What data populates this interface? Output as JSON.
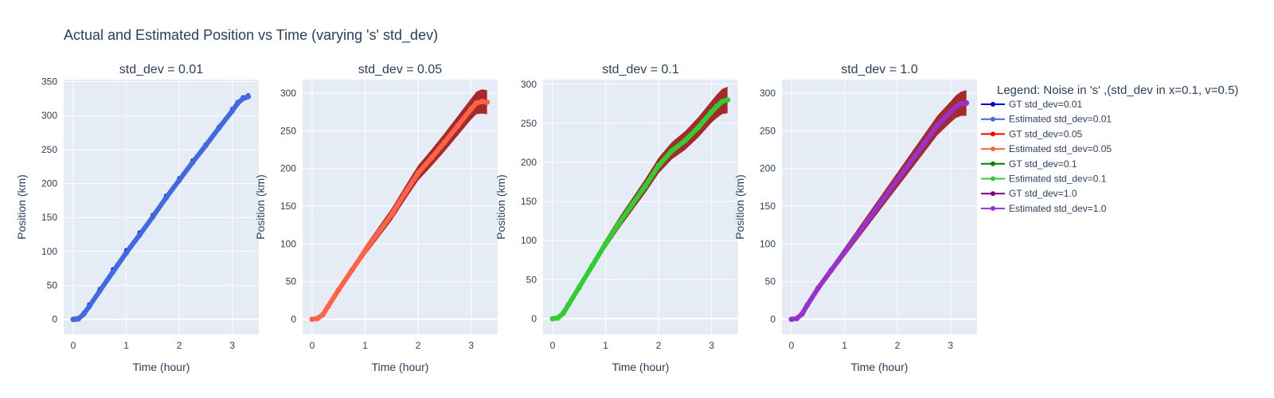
{
  "title": "Actual and Estimated Position vs Time (varying 's' std_dev)",
  "legend": {
    "title": "Legend: Noise in 's' ,(std_dev in x=0.1, v=0.5)",
    "entries": [
      {
        "label": "GT std_dev=0.01",
        "color": "#0000cd"
      },
      {
        "label": "Estimated std_dev=0.01",
        "color": "#4169e1"
      },
      {
        "label": "GT std_dev=0.05",
        "color": "#ff0000"
      },
      {
        "label": "Estimated std_dev=0.05",
        "color": "#ff6347"
      },
      {
        "label": "GT std_dev=0.1",
        "color": "#008000"
      },
      {
        "label": "Estimated std_dev=0.1",
        "color": "#32cd32"
      },
      {
        "label": "GT std_dev=1.0",
        "color": "#800080"
      },
      {
        "label": "Estimated std_dev=1.0",
        "color": "#9932cc"
      }
    ]
  },
  "colors": {
    "plot_bg": "#e5ecf6",
    "grid": "#ffffff",
    "error_band": "#a52a2a",
    "text": "#2a3f5f"
  },
  "chart_data": [
    {
      "type": "line",
      "title": "std_dev = 0.01",
      "xlabel": "Time (hour)",
      "ylabel": "Position (km)",
      "xlim": [
        -0.18,
        3.5
      ],
      "ylim": [
        -22,
        353
      ],
      "xticks": [
        0,
        1,
        2,
        3
      ],
      "yticks": [
        0,
        50,
        100,
        150,
        200,
        250,
        300,
        350
      ],
      "band_half_width": 4,
      "series": [
        {
          "name": "GT std_dev=0.01",
          "color": "#0000cd",
          "x": [
            0,
            0.1,
            0.2,
            0.3,
            0.5,
            0.75,
            1.0,
            1.25,
            1.5,
            1.75,
            2.0,
            2.25,
            2.5,
            2.75,
            3.0,
            3.1,
            3.2,
            3.3
          ],
          "y": [
            0,
            2,
            10,
            22,
            45,
            74,
            102,
            128,
            154,
            182,
            208,
            234,
            258,
            284,
            310,
            320,
            327,
            330
          ]
        },
        {
          "name": "Estimated std_dev=0.01",
          "color": "#4169e1",
          "x": [
            0,
            0.1,
            0.2,
            0.3,
            0.5,
            0.75,
            1.0,
            1.25,
            1.5,
            1.75,
            2.0,
            2.25,
            2.5,
            2.75,
            3.0,
            3.1,
            3.2,
            3.3
          ],
          "y": [
            0,
            1,
            8,
            19,
            42,
            70,
            98,
            124,
            151,
            179,
            205,
            231,
            256,
            282,
            307,
            318,
            325,
            328
          ]
        }
      ]
    },
    {
      "type": "line",
      "title": "std_dev = 0.05",
      "xlabel": "Time (hour)",
      "ylabel": "Position (km)",
      "xlim": [
        -0.18,
        3.5
      ],
      "ylim": [
        -20,
        318
      ],
      "xticks": [
        0,
        1,
        2,
        3
      ],
      "yticks": [
        0,
        50,
        100,
        150,
        200,
        250,
        300
      ],
      "band_half_width": [
        0,
        1,
        2,
        3,
        4,
        5,
        6,
        7,
        8,
        9,
        10,
        11,
        12,
        13,
        14,
        15,
        16,
        16
      ],
      "series": [
        {
          "name": "GT std_dev=0.05",
          "color": "#ff0000",
          "x": [
            0,
            0.1,
            0.2,
            0.3,
            0.5,
            0.75,
            1.0,
            1.25,
            1.5,
            1.75,
            2.0,
            2.25,
            2.5,
            2.75,
            3.0,
            3.1,
            3.2,
            3.3
          ],
          "y": [
            0,
            1,
            7,
            18,
            40,
            66,
            92,
            116,
            140,
            168,
            195,
            215,
            236,
            258,
            280,
            288,
            290,
            289
          ]
        },
        {
          "name": "Estimated std_dev=0.05",
          "color": "#ff6347",
          "x": [
            0,
            0.1,
            0.2,
            0.3,
            0.5,
            0.75,
            1.0,
            1.25,
            1.5,
            1.75,
            2.0,
            2.25,
            2.5,
            2.75,
            3.0,
            3.1,
            3.2,
            3.3
          ],
          "y": [
            0,
            1,
            6,
            17,
            39,
            65,
            91,
            115,
            139,
            167,
            194,
            214,
            235,
            257,
            279,
            287,
            289,
            288
          ]
        }
      ]
    },
    {
      "type": "line",
      "title": "std_dev = 0.1",
      "xlabel": "Time (hour)",
      "ylabel": "Position (km)",
      "xlim": [
        -0.18,
        3.5
      ],
      "ylim": [
        -20,
        306
      ],
      "xticks": [
        0,
        1,
        2,
        3
      ],
      "yticks": [
        0,
        50,
        100,
        150,
        200,
        250,
        300
      ],
      "band_half_width": [
        0,
        1,
        2,
        3,
        4,
        5,
        6,
        7,
        8,
        9,
        10,
        11,
        12,
        13,
        14,
        15,
        16,
        17
      ],
      "series": [
        {
          "name": "GT std_dev=0.1",
          "color": "#008000",
          "x": [
            0,
            0.1,
            0.2,
            0.3,
            0.5,
            0.75,
            1.0,
            1.25,
            1.5,
            1.75,
            2.0,
            2.25,
            2.5,
            2.75,
            3.0,
            3.1,
            3.2,
            3.3
          ],
          "y": [
            0,
            1,
            7,
            18,
            40,
            68,
            96,
            122,
            146,
            170,
            196,
            215,
            228,
            245,
            265,
            272,
            278,
            280
          ]
        },
        {
          "name": "Estimated std_dev=0.1",
          "color": "#32cd32",
          "x": [
            0,
            0.1,
            0.2,
            0.3,
            0.5,
            0.75,
            1.0,
            1.25,
            1.5,
            1.75,
            2.0,
            2.25,
            2.5,
            2.75,
            3.0,
            3.1,
            3.2,
            3.3
          ],
          "y": [
            0,
            1,
            7,
            18,
            40,
            68,
            96,
            122,
            146,
            170,
            196,
            215,
            228,
            245,
            265,
            272,
            278,
            280
          ]
        }
      ]
    },
    {
      "type": "line",
      "title": "std_dev = 1.0",
      "xlabel": "Time (hour)",
      "ylabel": "Position (km)",
      "xlim": [
        -0.18,
        3.5
      ],
      "ylim": [
        -20,
        318
      ],
      "xticks": [
        0,
        1,
        2,
        3
      ],
      "yticks": [
        0,
        50,
        100,
        150,
        200,
        250,
        300
      ],
      "band_half_width": [
        0,
        1,
        2,
        3,
        4,
        5,
        6,
        7,
        8,
        9,
        10,
        11,
        12,
        13,
        14,
        15,
        16,
        17
      ],
      "series": [
        {
          "name": "GT std_dev=1.0",
          "color": "#800080",
          "x": [
            0,
            0.1,
            0.2,
            0.3,
            0.5,
            0.75,
            1.0,
            1.25,
            1.5,
            1.75,
            2.0,
            2.25,
            2.5,
            2.75,
            3.0,
            3.1,
            3.2,
            3.3
          ],
          "y": [
            0,
            1,
            7,
            19,
            41,
            65,
            89,
            113,
            137,
            161,
            185,
            209,
            233,
            257,
            275,
            282,
            286,
            287
          ]
        },
        {
          "name": "Estimated std_dev=1.0",
          "color": "#9932cc",
          "x": [
            0,
            0.1,
            0.2,
            0.3,
            0.5,
            0.75,
            1.0,
            1.25,
            1.5,
            1.75,
            2.0,
            2.25,
            2.5,
            2.75,
            3.0,
            3.1,
            3.2,
            3.3
          ],
          "y": [
            0,
            1,
            7,
            19,
            41,
            65,
            89,
            113,
            137,
            161,
            185,
            209,
            233,
            257,
            275,
            282,
            286,
            287
          ]
        }
      ]
    }
  ]
}
